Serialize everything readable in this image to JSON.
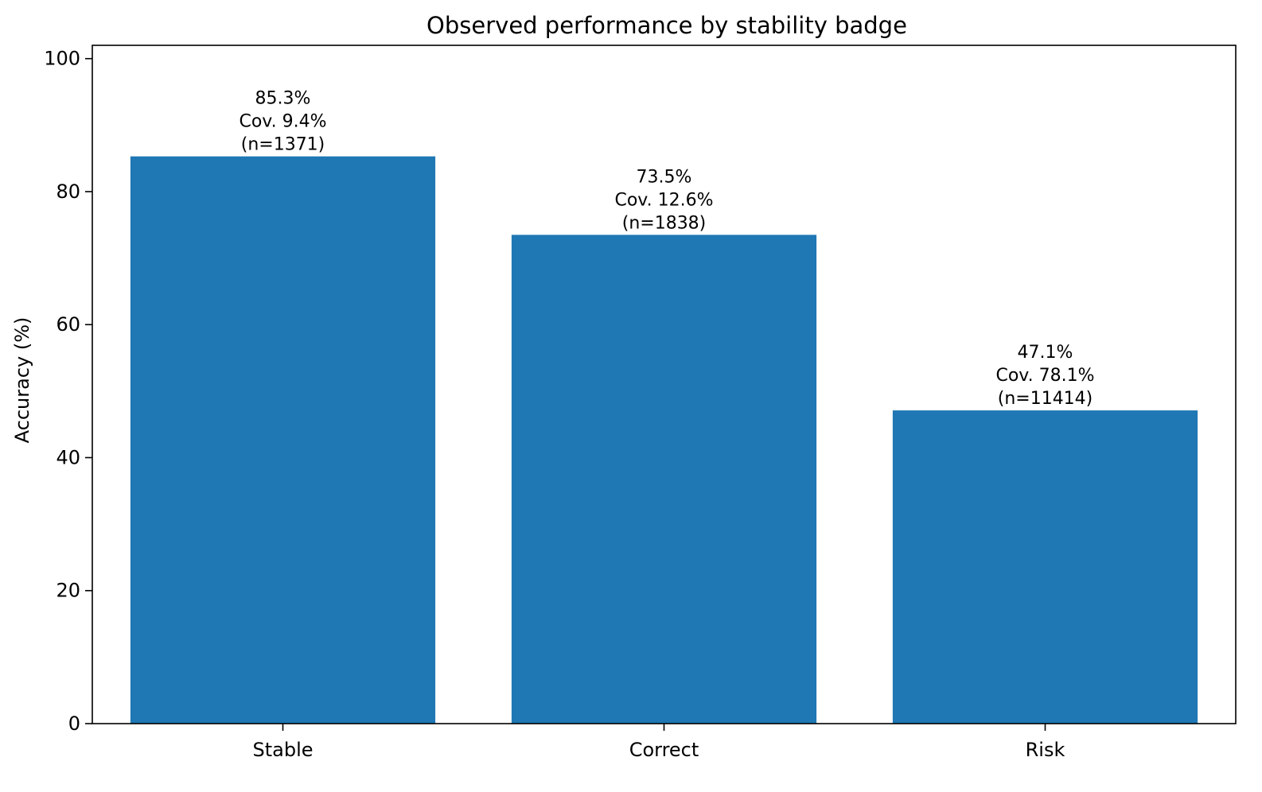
{
  "chart_data": {
    "type": "bar",
    "title": "Observed performance by stability badge",
    "xlabel": "",
    "ylabel": "Accuracy (%)",
    "ylim": [
      0,
      102
    ],
    "yticks": [
      0,
      20,
      40,
      60,
      80,
      100
    ],
    "ytick_labels": [
      "0",
      "20",
      "40",
      "60",
      "80",
      "100"
    ],
    "grid": false,
    "legend": "none",
    "bar_color": "#1f77b4",
    "categories": [
      "Stable",
      "Correct",
      "Risk"
    ],
    "values": [
      85.3,
      73.5,
      47.1
    ],
    "annotations": [
      [
        "85.3%",
        "Cov. 9.4%",
        "(n=1371)"
      ],
      [
        "73.5%",
        "Cov. 12.6%",
        "(n=1838)"
      ],
      [
        "47.1%",
        "Cov. 78.1%",
        "(n=11414)"
      ]
    ]
  }
}
